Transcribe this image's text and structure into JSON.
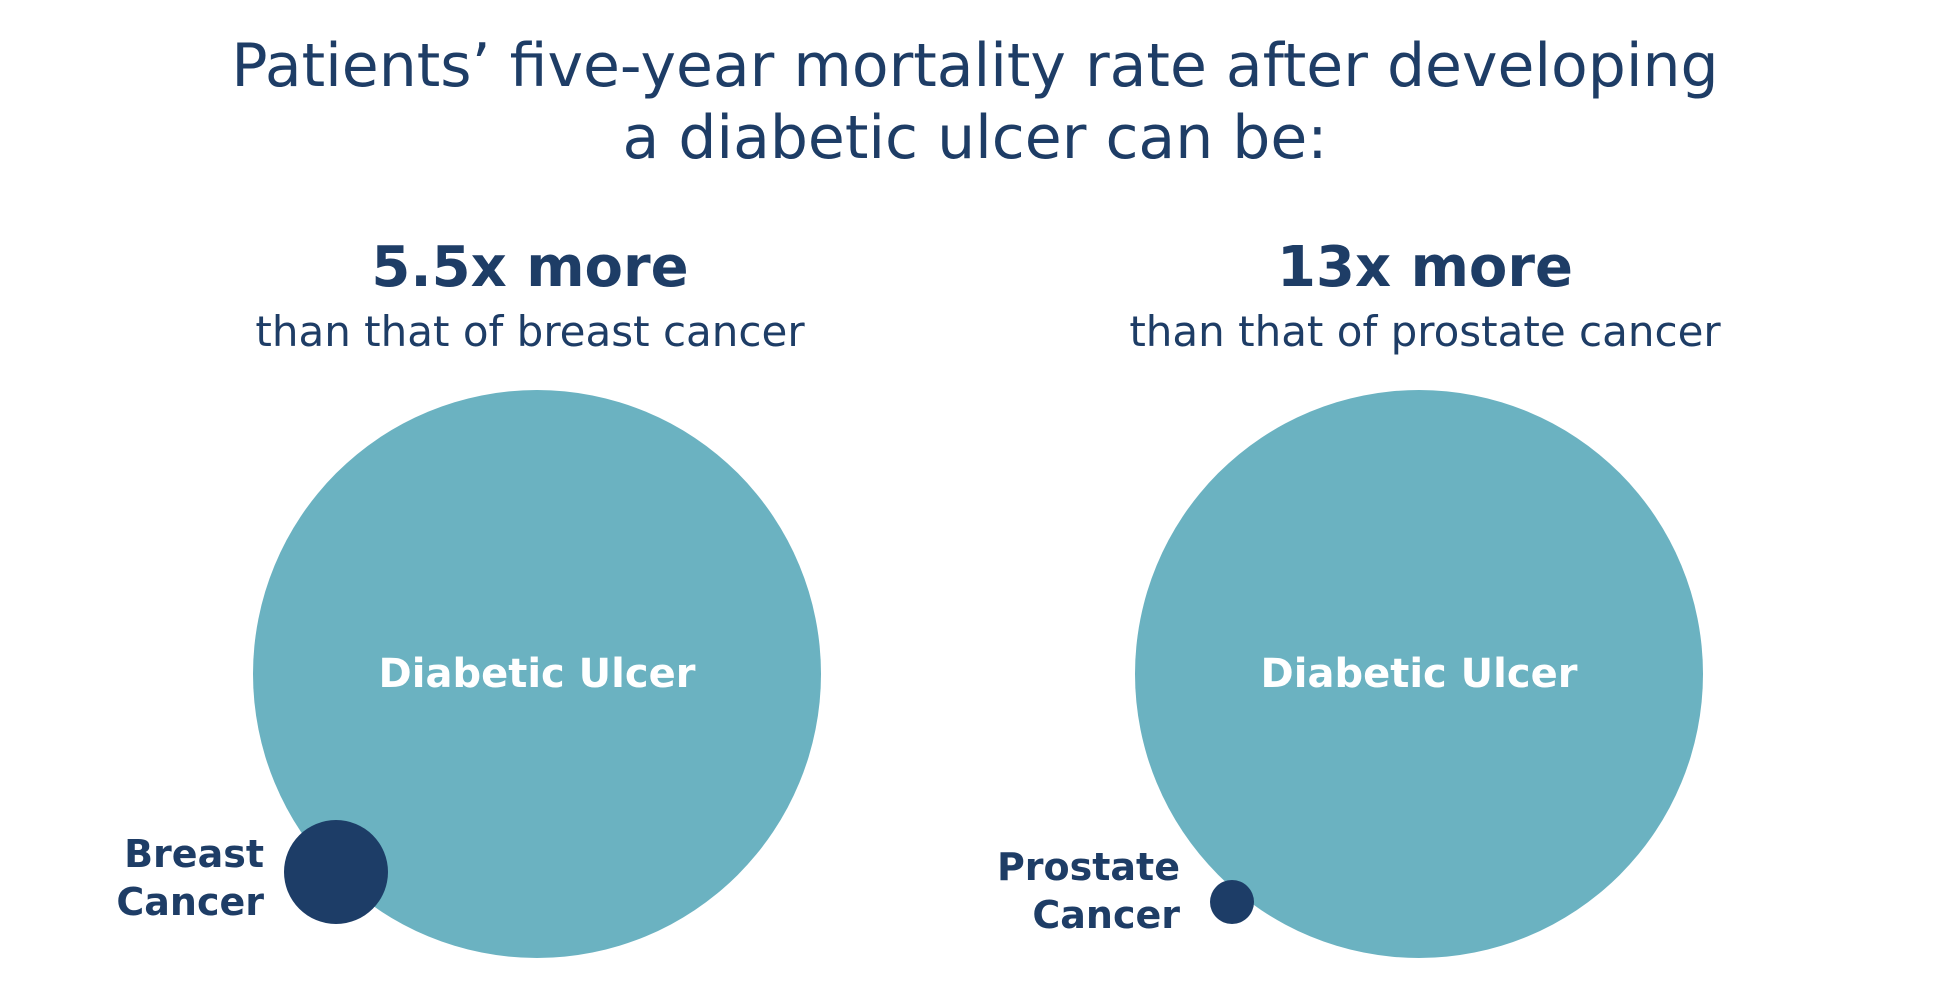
{
  "headline": {
    "line1": "Patients’ five-year mortality rate after developing",
    "line2": "a diabetic ulcer can be:"
  },
  "comparisons": [
    {
      "multiplier": "5.5x more",
      "subtext": "than that of breast cancer",
      "big_label": "Diabetic Ulcer",
      "small_label_line1": "Breast",
      "small_label_line2": "Cancer",
      "ratio": 5.5
    },
    {
      "multiplier": "13x more",
      "subtext": "than that of prostate cancer",
      "big_label": "Diabetic Ulcer",
      "small_label_line1": "Prostate",
      "small_label_line2": "Cancer",
      "ratio": 13
    }
  ],
  "colors": {
    "text": "#1e3d66",
    "big_circle": "#6bb2c1",
    "small_circle": "#1d3d67",
    "background": "#ffffff"
  }
}
